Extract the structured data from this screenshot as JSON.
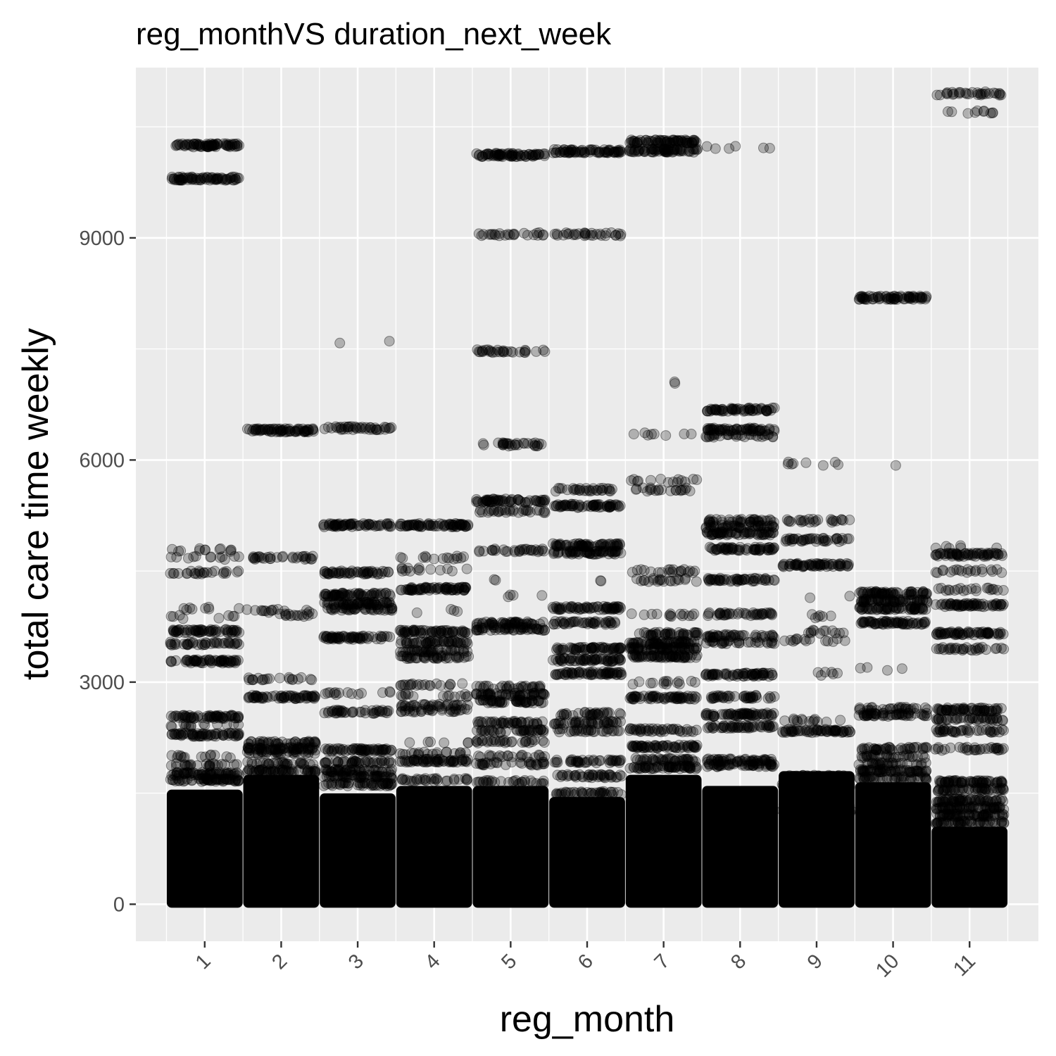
{
  "chart_data": {
    "type": "scatter",
    "title": "reg_monthVS duration_next_week",
    "xlabel": "reg_month",
    "ylabel": "total care time weekly",
    "categories": [
      "1",
      "2",
      "3",
      "4",
      "5",
      "6",
      "7",
      "8",
      "9",
      "10",
      "11"
    ],
    "yticks": [
      0,
      3000,
      6000,
      9000
    ],
    "ylim": [
      -500,
      11300
    ],
    "grid": true,
    "background_color": "#ebebeb",
    "grid_color": "#ffffff",
    "point_color": "#000000",
    "point_alpha": 0.25,
    "jitter_width": 0.45,
    "series": [
      {
        "category": "1",
        "dense_max": 1500,
        "bands": [
          {
            "y": 10250,
            "n": 70
          },
          {
            "y": 9800,
            "n": 70
          },
          {
            "y": 4780,
            "n": 12
          },
          {
            "y": 4680,
            "n": 12
          },
          {
            "y": 4480,
            "n": 24
          },
          {
            "y": 3990,
            "n": 8
          },
          {
            "y": 3880,
            "n": 8
          },
          {
            "y": 3690,
            "n": 60
          },
          {
            "y": 3520,
            "n": 40
          },
          {
            "y": 3280,
            "n": 60
          },
          {
            "y": 2530,
            "n": 60
          },
          {
            "y": 2420,
            "n": 14
          },
          {
            "y": 2290,
            "n": 60
          },
          {
            "y": 2000,
            "n": 14
          },
          {
            "y": 1880,
            "n": 24
          },
          {
            "y": 1760,
            "n": 60
          },
          {
            "y": 1680,
            "n": 60
          }
        ]
      },
      {
        "category": "2",
        "dense_max": 1700,
        "bands": [
          {
            "y": 6400,
            "n": 70
          },
          {
            "y": 4680,
            "n": 30
          },
          {
            "y": 3960,
            "n": 14
          },
          {
            "y": 3900,
            "n": 14
          },
          {
            "y": 3040,
            "n": 20
          },
          {
            "y": 2800,
            "n": 60
          },
          {
            "y": 2180,
            "n": 40
          },
          {
            "y": 2100,
            "n": 60
          },
          {
            "y": 2040,
            "n": 30
          },
          {
            "y": 1900,
            "n": 30
          },
          {
            "y": 1800,
            "n": 60
          }
        ]
      },
      {
        "category": "3",
        "dense_max": 1450,
        "bands": [
          {
            "y": 7600,
            "n": 2
          },
          {
            "y": 6430,
            "n": 40
          },
          {
            "y": 5120,
            "n": 60
          },
          {
            "y": 4480,
            "n": 50
          },
          {
            "y": 4180,
            "n": 60
          },
          {
            "y": 4060,
            "n": 60
          },
          {
            "y": 3990,
            "n": 40
          },
          {
            "y": 3600,
            "n": 60
          },
          {
            "y": 2850,
            "n": 14
          },
          {
            "y": 2600,
            "n": 40
          },
          {
            "y": 2080,
            "n": 60
          },
          {
            "y": 1920,
            "n": 40
          },
          {
            "y": 1800,
            "n": 50
          },
          {
            "y": 1720,
            "n": 50
          },
          {
            "y": 1620,
            "n": 50
          }
        ]
      },
      {
        "category": "4",
        "dense_max": 1550,
        "bands": [
          {
            "y": 5120,
            "n": 70
          },
          {
            "y": 4680,
            "n": 14
          },
          {
            "y": 4520,
            "n": 14
          },
          {
            "y": 4260,
            "n": 70
          },
          {
            "y": 3960,
            "n": 4
          },
          {
            "y": 3680,
            "n": 60
          },
          {
            "y": 3540,
            "n": 50
          },
          {
            "y": 3420,
            "n": 40
          },
          {
            "y": 3340,
            "n": 40
          },
          {
            "y": 2960,
            "n": 20
          },
          {
            "y": 2820,
            "n": 14
          },
          {
            "y": 2680,
            "n": 30
          },
          {
            "y": 2620,
            "n": 30
          },
          {
            "y": 2200,
            "n": 6
          },
          {
            "y": 2040,
            "n": 20
          },
          {
            "y": 1940,
            "n": 60
          },
          {
            "y": 1680,
            "n": 30
          }
        ]
      },
      {
        "category": "5",
        "dense_max": 1550,
        "bands": [
          {
            "y": 10120,
            "n": 70
          },
          {
            "y": 9050,
            "n": 24
          },
          {
            "y": 7470,
            "n": 30
          },
          {
            "y": 6210,
            "n": 30
          },
          {
            "y": 5450,
            "n": 60
          },
          {
            "y": 5310,
            "n": 30
          },
          {
            "y": 4780,
            "n": 30
          },
          {
            "y": 4380,
            "n": 2
          },
          {
            "y": 4160,
            "n": 4
          },
          {
            "y": 3790,
            "n": 50
          },
          {
            "y": 3720,
            "n": 50
          },
          {
            "y": 2930,
            "n": 30
          },
          {
            "y": 2830,
            "n": 50
          },
          {
            "y": 2740,
            "n": 50
          },
          {
            "y": 2450,
            "n": 40
          },
          {
            "y": 2340,
            "n": 40
          },
          {
            "y": 2200,
            "n": 30
          },
          {
            "y": 2000,
            "n": 20
          },
          {
            "y": 1900,
            "n": 30
          },
          {
            "y": 1650,
            "n": 30
          }
        ]
      },
      {
        "category": "6",
        "dense_max": 1400,
        "bands": [
          {
            "y": 10170,
            "n": 70
          },
          {
            "y": 9050,
            "n": 30
          },
          {
            "y": 5600,
            "n": 30
          },
          {
            "y": 5380,
            "n": 60
          },
          {
            "y": 4850,
            "n": 60
          },
          {
            "y": 4750,
            "n": 60
          },
          {
            "y": 4380,
            "n": 2
          },
          {
            "y": 4000,
            "n": 60
          },
          {
            "y": 3800,
            "n": 40
          },
          {
            "y": 3450,
            "n": 60
          },
          {
            "y": 3300,
            "n": 60
          },
          {
            "y": 3120,
            "n": 60
          },
          {
            "y": 2570,
            "n": 30
          },
          {
            "y": 2450,
            "n": 40
          },
          {
            "y": 2350,
            "n": 30
          },
          {
            "y": 1930,
            "n": 40
          },
          {
            "y": 1730,
            "n": 40
          },
          {
            "y": 1500,
            "n": 40
          }
        ]
      },
      {
        "category": "7",
        "dense_max": 1700,
        "bands": [
          {
            "y": 10300,
            "n": 70
          },
          {
            "y": 10180,
            "n": 70
          },
          {
            "y": 7050,
            "n": 2
          },
          {
            "y": 6350,
            "n": 8
          },
          {
            "y": 5720,
            "n": 14
          },
          {
            "y": 5600,
            "n": 20
          },
          {
            "y": 4500,
            "n": 20
          },
          {
            "y": 4380,
            "n": 20
          },
          {
            "y": 3900,
            "n": 14
          },
          {
            "y": 3650,
            "n": 40
          },
          {
            "y": 3530,
            "n": 60
          },
          {
            "y": 3450,
            "n": 60
          },
          {
            "y": 3350,
            "n": 60
          },
          {
            "y": 2990,
            "n": 14
          },
          {
            "y": 2790,
            "n": 60
          },
          {
            "y": 2350,
            "n": 40
          },
          {
            "y": 2130,
            "n": 60
          },
          {
            "y": 1950,
            "n": 40
          },
          {
            "y": 1850,
            "n": 60
          }
        ]
      },
      {
        "category": "8",
        "dense_max": 1550,
        "bands": [
          {
            "y": 10220,
            "n": 6
          },
          {
            "y": 6680,
            "n": 60
          },
          {
            "y": 6410,
            "n": 60
          },
          {
            "y": 6330,
            "n": 30
          },
          {
            "y": 5180,
            "n": 40
          },
          {
            "y": 5100,
            "n": 40
          },
          {
            "y": 5010,
            "n": 60
          },
          {
            "y": 4800,
            "n": 60
          },
          {
            "y": 4380,
            "n": 50
          },
          {
            "y": 3920,
            "n": 40
          },
          {
            "y": 3620,
            "n": 40
          },
          {
            "y": 3540,
            "n": 30
          },
          {
            "y": 3100,
            "n": 60
          },
          {
            "y": 2800,
            "n": 40
          },
          {
            "y": 2560,
            "n": 60
          },
          {
            "y": 2400,
            "n": 50
          },
          {
            "y": 1940,
            "n": 50
          },
          {
            "y": 1880,
            "n": 50
          }
        ]
      },
      {
        "category": "9",
        "dense_max": 1750,
        "bands": [
          {
            "y": 5950,
            "n": 8
          },
          {
            "y": 5180,
            "n": 24
          },
          {
            "y": 4920,
            "n": 40
          },
          {
            "y": 4580,
            "n": 60
          },
          {
            "y": 4150,
            "n": 2
          },
          {
            "y": 3890,
            "n": 6
          },
          {
            "y": 3680,
            "n": 12
          },
          {
            "y": 3570,
            "n": 14
          },
          {
            "y": 3110,
            "n": 6
          },
          {
            "y": 2480,
            "n": 14
          },
          {
            "y": 2340,
            "n": 60
          },
          {
            "y": 1720,
            "n": 60
          },
          {
            "y": 1600,
            "n": 60
          },
          {
            "y": 1450,
            "n": 60
          },
          {
            "y": 1350,
            "n": 60
          },
          {
            "y": 1250,
            "n": 60
          }
        ]
      },
      {
        "category": "10",
        "dense_max": 1600,
        "bands": [
          {
            "y": 8190,
            "n": 70
          },
          {
            "y": 5950,
            "n": 1
          },
          {
            "y": 4200,
            "n": 60
          },
          {
            "y": 4100,
            "n": 60
          },
          {
            "y": 4000,
            "n": 60
          },
          {
            "y": 3800,
            "n": 60
          },
          {
            "y": 3180,
            "n": 4
          },
          {
            "y": 2640,
            "n": 30
          },
          {
            "y": 2560,
            "n": 50
          },
          {
            "y": 2100,
            "n": 40
          },
          {
            "y": 2000,
            "n": 30
          },
          {
            "y": 1890,
            "n": 30
          },
          {
            "y": 1800,
            "n": 60
          },
          {
            "y": 1700,
            "n": 40
          }
        ]
      },
      {
        "category": "11",
        "dense_max": 1000,
        "bands": [
          {
            "y": 10950,
            "n": 30
          },
          {
            "y": 10700,
            "n": 10
          },
          {
            "y": 4830,
            "n": 6
          },
          {
            "y": 4720,
            "n": 60
          },
          {
            "y": 4500,
            "n": 20
          },
          {
            "y": 4250,
            "n": 20
          },
          {
            "y": 4040,
            "n": 60
          },
          {
            "y": 3660,
            "n": 60
          },
          {
            "y": 3450,
            "n": 30
          },
          {
            "y": 2630,
            "n": 60
          },
          {
            "y": 2500,
            "n": 40
          },
          {
            "y": 2340,
            "n": 40
          },
          {
            "y": 2100,
            "n": 30
          },
          {
            "y": 1650,
            "n": 60
          },
          {
            "y": 1550,
            "n": 50
          },
          {
            "y": 1400,
            "n": 60
          },
          {
            "y": 1300,
            "n": 60
          },
          {
            "y": 1200,
            "n": 60
          },
          {
            "y": 1100,
            "n": 50
          }
        ]
      }
    ]
  }
}
